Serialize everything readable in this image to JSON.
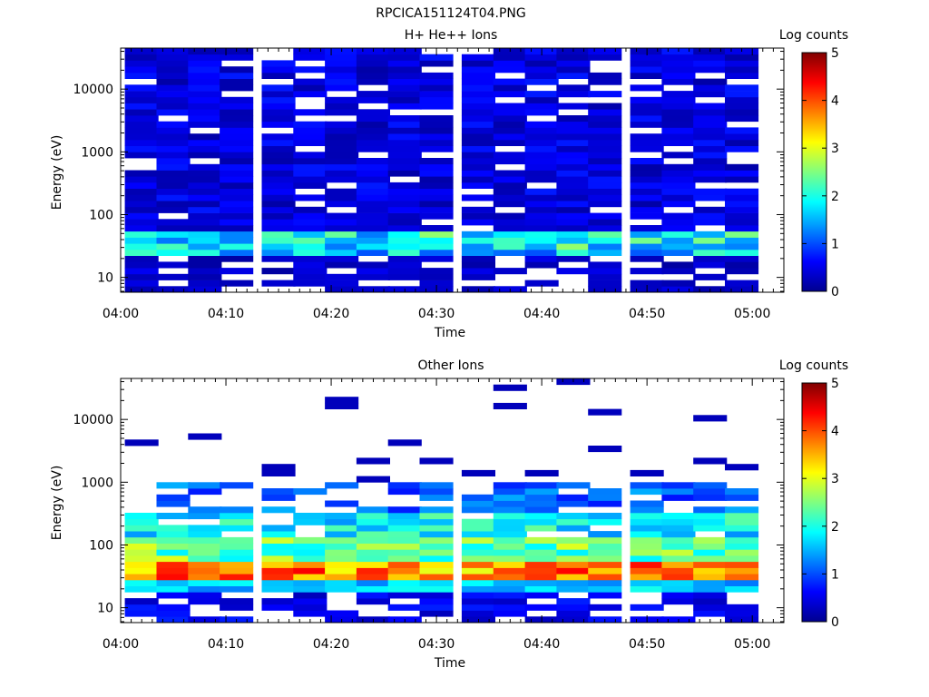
{
  "figure_title": "RPCICA151124T04.PNG",
  "chart_data": [
    {
      "type": "heatmap",
      "title": "H+ He++ Ions",
      "xlabel": "Time",
      "ylabel": "Energy (eV)",
      "y_scale": "log",
      "ylim": [
        5.8,
        45000
      ],
      "xlim": [
        "04:00",
        "05:03"
      ],
      "x_ticks": [
        "04:00",
        "04:10",
        "04:20",
        "04:30",
        "04:40",
        "04:50",
        "05:00"
      ],
      "y_ticks": [
        "10",
        "100",
        "1000",
        "10000"
      ],
      "colorbar": {
        "label": "Log counts",
        "ticks": [
          "0",
          "1",
          "2",
          "3",
          "4",
          "5"
        ],
        "range": [
          0,
          5
        ]
      },
      "time_bins": [
        "04:02",
        "04:05",
        "04:08",
        "04:11",
        "04:15",
        "04:18",
        "04:21",
        "04:24",
        "04:27",
        "04:30",
        "04:34",
        "04:37",
        "04:40",
        "04:43",
        "04:46",
        "04:50",
        "04:53",
        "04:56",
        "04:59"
      ],
      "summary_by_energy": [
        {
          "energy_range_eV": [
            6,
            12
          ],
          "log_counts_range": [
            0,
            0.5
          ]
        },
        {
          "energy_range_eV": [
            12,
            20
          ],
          "log_counts_range": [
            0,
            0.6
          ]
        },
        {
          "energy_range_eV": [
            20,
            60
          ],
          "log_counts_range": [
            1.0,
            2.6
          ]
        },
        {
          "energy_range_eV": [
            60,
            45000
          ],
          "log_counts_range": [
            0.1,
            0.8
          ]
        }
      ]
    },
    {
      "type": "heatmap",
      "title": "Other Ions",
      "xlabel": "Time",
      "ylabel": "Energy (eV)",
      "y_scale": "log",
      "ylim": [
        5.8,
        45000
      ],
      "xlim": [
        "04:00",
        "05:03"
      ],
      "x_ticks": [
        "04:00",
        "04:10",
        "04:20",
        "04:30",
        "04:40",
        "04:50",
        "05:00"
      ],
      "y_ticks": [
        "10",
        "100",
        "1000",
        "10000"
      ],
      "colorbar": {
        "label": "Log counts",
        "ticks": [
          "0",
          "1",
          "2",
          "3",
          "4",
          "5"
        ],
        "range": [
          0,
          5
        ]
      },
      "time_bins": [
        "04:02",
        "04:05",
        "04:08",
        "04:11",
        "04:15",
        "04:18",
        "04:21",
        "04:24",
        "04:27",
        "04:30",
        "04:34",
        "04:37",
        "04:40",
        "04:43",
        "04:46",
        "04:50",
        "04:53",
        "04:56",
        "04:59"
      ],
      "summary_by_energy": [
        {
          "energy_range_eV": [
            6,
            16
          ],
          "log_counts_range": [
            0,
            0.8
          ]
        },
        {
          "energy_range_eV": [
            16,
            25
          ],
          "log_counts_range": [
            1.2,
            2.0
          ]
        },
        {
          "energy_range_eV": [
            25,
            60
          ],
          "log_counts_range": [
            3.0,
            4.4
          ]
        },
        {
          "energy_range_eV": [
            60,
            300
          ],
          "log_counts_range": [
            1.4,
            3.0
          ]
        },
        {
          "energy_range_eV": [
            300,
            1000
          ],
          "log_counts_range": [
            0.2,
            1.5
          ]
        },
        {
          "energy_range_eV": [
            1000,
            45000
          ],
          "log_counts_range": [
            0,
            0.3
          ]
        }
      ]
    }
  ]
}
